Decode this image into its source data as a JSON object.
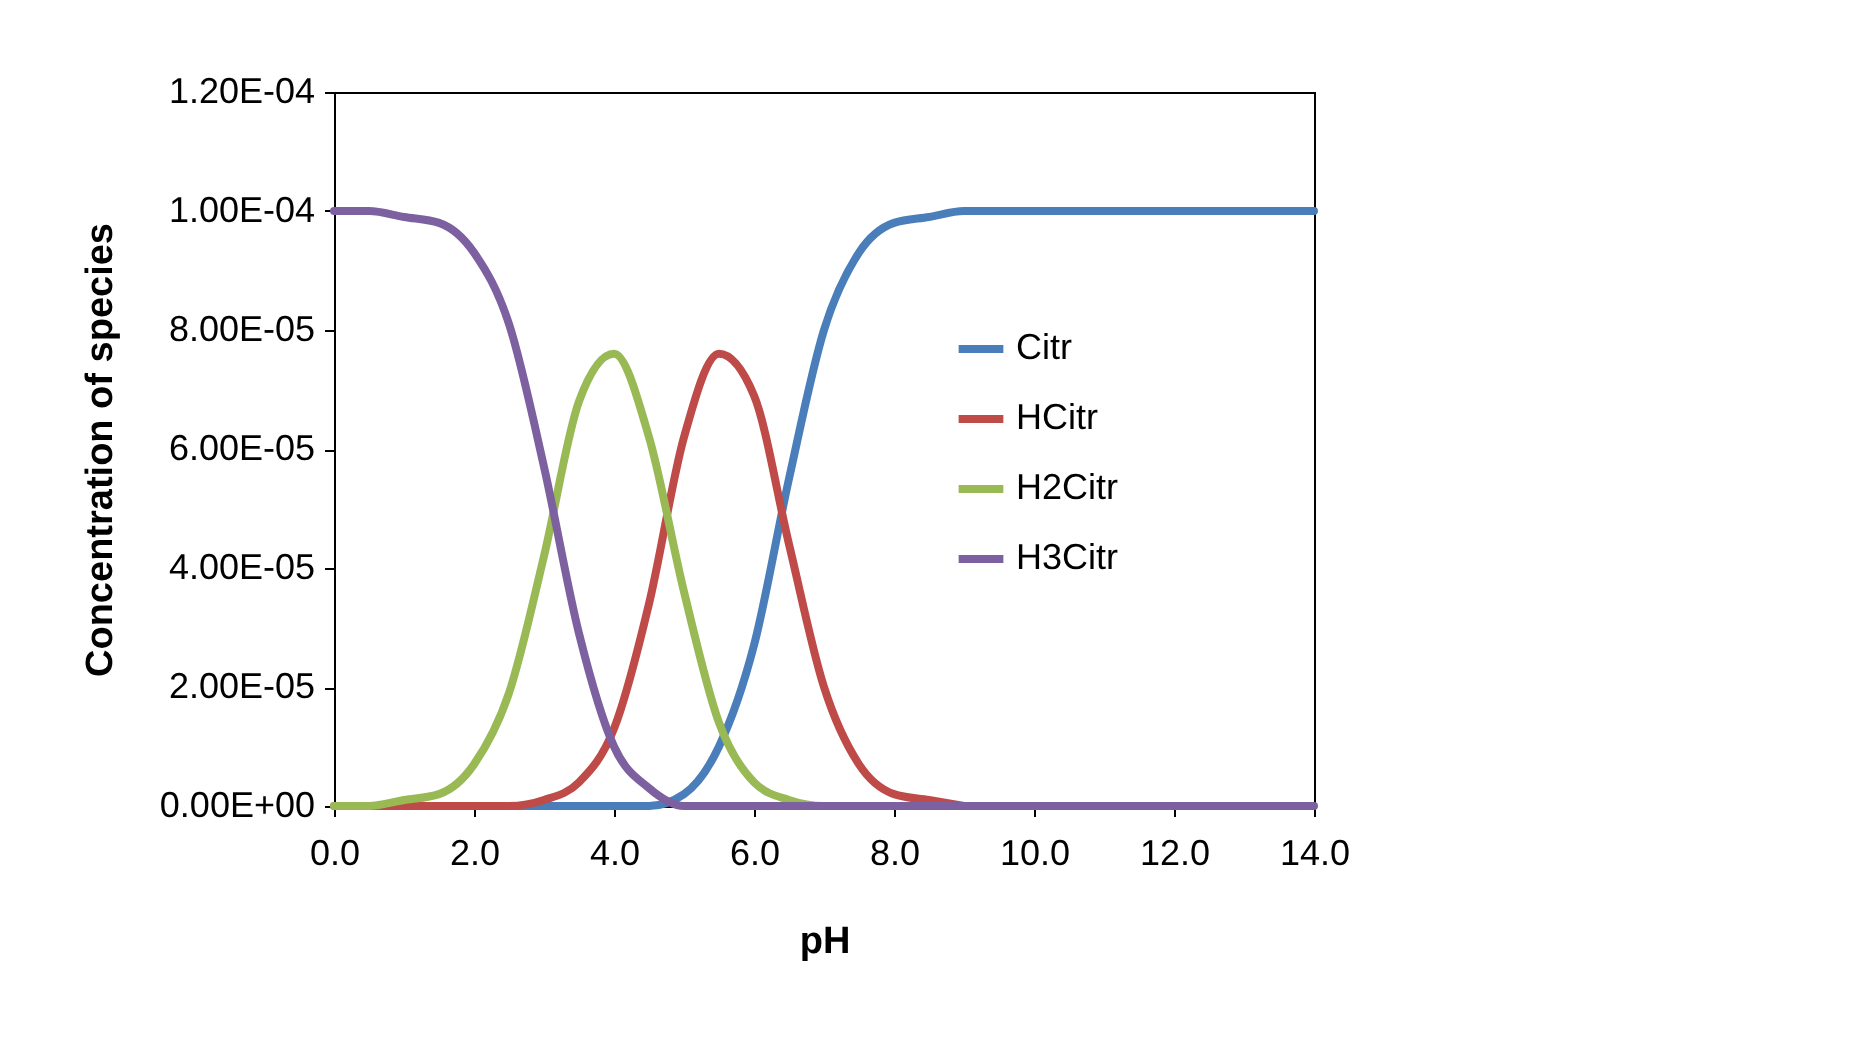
{
  "chart_data": {
    "type": "line",
    "xlabel": "pH",
    "ylabel": "Concentration of species",
    "x": [
      0,
      0.5,
      1,
      1.5,
      2,
      2.5,
      3,
      3.5,
      4,
      4.5,
      5,
      5.5,
      6,
      6.5,
      7,
      7.5,
      8,
      8.5,
      9,
      10,
      11,
      12,
      13,
      14
    ],
    "series": [
      {
        "name": "Citr",
        "color": "#4a7ebb",
        "values": [
          null,
          null,
          null,
          null,
          0,
          0,
          0,
          0,
          0,
          0,
          2e-06,
          1e-05,
          2.7e-05,
          5.5e-05,
          8e-05,
          9.3e-05,
          9.8e-05,
          9.9e-05,
          0.0001,
          0.0001,
          0.0001,
          0.0001,
          0.0001,
          0.0001
        ]
      },
      {
        "name": "HCitr",
        "color": "#be4b48",
        "values": [
          0,
          0,
          0,
          0,
          0,
          0,
          1e-06,
          4e-06,
          1.3e-05,
          3.4e-05,
          6.2e-05,
          7.6e-05,
          6.9e-05,
          4.4e-05,
          2e-05,
          7e-06,
          2e-06,
          1e-06,
          0,
          null,
          null,
          null,
          null,
          null
        ]
      },
      {
        "name": "H2Citr",
        "color": "#98b954",
        "values": [
          0,
          0,
          1e-06,
          2e-06,
          7e-06,
          1.9e-05,
          4.2e-05,
          6.8e-05,
          7.6e-05,
          6.2e-05,
          3.6e-05,
          1.4e-05,
          4e-06,
          1e-06,
          0,
          0,
          null,
          null,
          null,
          null,
          null,
          null,
          null,
          null
        ]
      },
      {
        "name": "H3Citr",
        "color": "#7d60a0",
        "values": [
          0.0001,
          0.0001,
          9.9e-05,
          9.8e-05,
          9.3e-05,
          8.1e-05,
          5.7e-05,
          2.9e-05,
          1e-05,
          3e-06,
          0,
          0,
          0,
          0,
          0,
          0,
          0,
          0,
          0,
          0,
          0,
          0,
          0,
          0
        ]
      }
    ],
    "xlim": [
      0,
      14
    ],
    "xticks": [
      {
        "value": 0,
        "label": "0.0"
      },
      {
        "value": 2,
        "label": "2.0"
      },
      {
        "value": 4,
        "label": "4.0"
      },
      {
        "value": 6,
        "label": "6.0"
      },
      {
        "value": 8,
        "label": "8.0"
      },
      {
        "value": 10,
        "label": "10.0"
      },
      {
        "value": 12,
        "label": "12.0"
      },
      {
        "value": 14,
        "label": "14.0"
      }
    ],
    "ylim": [
      0,
      0.00012
    ],
    "yticks": [
      {
        "value": 0,
        "label": "0.00E+00"
      },
      {
        "value": 2e-05,
        "label": "2.00E-05"
      },
      {
        "value": 4e-05,
        "label": "4.00E-05"
      },
      {
        "value": 6e-05,
        "label": "6.00E-05"
      },
      {
        "value": 8e-05,
        "label": "8.00E-05"
      },
      {
        "value": 0.0001,
        "label": "1.00E-04"
      },
      {
        "value": 0.00012,
        "label": "1.20E-04"
      }
    ],
    "legend": "right",
    "grid": false,
    "marker": "none",
    "line_style": "solid"
  }
}
